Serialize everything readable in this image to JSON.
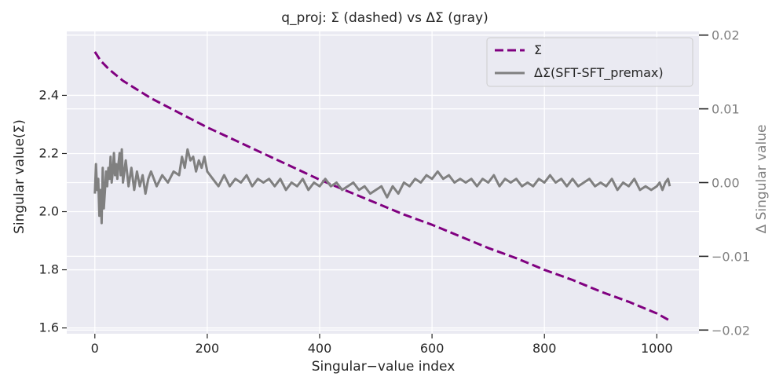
{
  "chart_data": {
    "type": "line",
    "title": "q_proj: Σ (dashed) vs ΔΣ (gray)",
    "xlabel": "Singular−value index",
    "ylabel": "Singular value(Σ)",
    "ylabel_right": "Δ Singular value",
    "xlim": [
      -50,
      1075
    ],
    "ylim": [
      1.58,
      2.62
    ],
    "ylim_right": [
      -0.0205,
      0.0205
    ],
    "x_ticks": [
      0,
      200,
      400,
      600,
      800,
      1000
    ],
    "x_tick_labels": [
      "0",
      "200",
      "400",
      "600",
      "800",
      "1000"
    ],
    "y_ticks": [
      1.6,
      1.8,
      2.0,
      2.2,
      2.4
    ],
    "y_tick_labels": [
      "1.6",
      "1.8",
      "2.0",
      "2.2",
      "2.4"
    ],
    "y_ticks_right": [
      -0.02,
      -0.01,
      0.0,
      0.01,
      0.02
    ],
    "y_tick_labels_right": [
      "−0.02",
      "−0.01",
      "0.00",
      "0.01",
      "0.02"
    ],
    "grid": true,
    "legend_position": "top-right",
    "series": [
      {
        "name": "Σ",
        "axis": "left",
        "style": "dashed",
        "color": "#800080",
        "x": [
          0,
          10,
          25,
          50,
          75,
          100,
          150,
          200,
          250,
          300,
          350,
          400,
          450,
          500,
          550,
          600,
          650,
          700,
          750,
          800,
          850,
          900,
          950,
          1000,
          1023
        ],
        "values": [
          2.55,
          2.52,
          2.49,
          2.45,
          2.42,
          2.39,
          2.34,
          2.29,
          2.245,
          2.2,
          2.155,
          2.11,
          2.07,
          2.03,
          1.99,
          1.955,
          1.915,
          1.875,
          1.84,
          1.8,
          1.765,
          1.725,
          1.69,
          1.65,
          1.625
        ]
      },
      {
        "name": "ΔΣ(SFT-SFT_premax)",
        "axis": "right",
        "style": "solid",
        "color": "#808080",
        "x": [
          0,
          2,
          4,
          6,
          8,
          10,
          12,
          14,
          16,
          18,
          20,
          22,
          24,
          26,
          28,
          30,
          32,
          34,
          36,
          38,
          40,
          42,
          44,
          46,
          48,
          50,
          55,
          60,
          65,
          70,
          75,
          80,
          85,
          90,
          95,
          100,
          110,
          120,
          130,
          140,
          150,
          155,
          160,
          165,
          170,
          175,
          180,
          185,
          190,
          195,
          200,
          210,
          220,
          230,
          240,
          250,
          260,
          270,
          280,
          290,
          300,
          310,
          320,
          330,
          340,
          350,
          360,
          370,
          380,
          390,
          400,
          410,
          420,
          430,
          440,
          450,
          460,
          470,
          480,
          490,
          500,
          510,
          520,
          530,
          540,
          550,
          560,
          570,
          580,
          590,
          600,
          610,
          620,
          630,
          640,
          650,
          660,
          670,
          680,
          690,
          700,
          710,
          720,
          730,
          740,
          750,
          760,
          770,
          780,
          790,
          800,
          810,
          820,
          830,
          840,
          850,
          860,
          870,
          880,
          890,
          900,
          910,
          920,
          930,
          940,
          950,
          960,
          970,
          980,
          990,
          1000,
          1005,
          1010,
          1015,
          1020,
          1023
        ],
        "values": [
          -0.0015,
          0.0025,
          -0.001,
          0.0005,
          -0.0045,
          -0.001,
          -0.0055,
          0.002,
          -0.0035,
          -0.001,
          0.0015,
          -0.0005,
          0.002,
          0.0005,
          0.0035,
          0.0,
          0.0015,
          0.004,
          0.001,
          0.0025,
          0.0005,
          0.0025,
          0.004,
          0.001,
          0.0045,
          0.0,
          0.003,
          -0.0005,
          0.002,
          -0.001,
          0.0015,
          -0.0005,
          0.001,
          -0.0015,
          0.0005,
          0.0015,
          -0.0005,
          0.001,
          0.0,
          0.0015,
          0.001,
          0.0035,
          0.002,
          0.0045,
          0.003,
          0.0035,
          0.0015,
          0.003,
          0.002,
          0.0035,
          0.0015,
          0.0005,
          -0.0005,
          0.001,
          -0.0005,
          0.0005,
          0.0,
          0.001,
          -0.0005,
          0.0005,
          0.0,
          0.0005,
          -0.0005,
          0.0005,
          -0.001,
          0.0,
          -0.0005,
          0.0005,
          -0.001,
          0.0,
          -0.0005,
          0.0005,
          -0.0005,
          0.0,
          -0.001,
          -0.0005,
          0.0,
          -0.001,
          -0.0005,
          -0.0015,
          -0.001,
          -0.0005,
          -0.002,
          -0.0005,
          -0.0015,
          0.0,
          -0.0005,
          0.0005,
          0.0,
          0.001,
          0.0005,
          0.0015,
          0.0005,
          0.001,
          0.0,
          0.0005,
          0.0,
          0.0005,
          -0.0005,
          0.0005,
          0.0,
          0.001,
          -0.0005,
          0.0005,
          0.0,
          0.0005,
          -0.0005,
          0.0,
          -0.0005,
          0.0005,
          0.0,
          0.001,
          0.0,
          0.0005,
          -0.0005,
          0.0005,
          -0.0005,
          0.0,
          0.0005,
          -0.0005,
          0.0,
          -0.0005,
          0.0005,
          -0.001,
          0.0,
          -0.0005,
          0.0005,
          -0.001,
          -0.0005,
          -0.001,
          -0.0005,
          0.0,
          -0.001,
          0.0,
          0.0005,
          -0.0005
        ]
      }
    ]
  },
  "colors": {
    "plot_background": "#eaeaf2",
    "grid": "#ffffff",
    "sigma_line": "#800080",
    "delta_line": "#808080",
    "right_axis_text": "#808080"
  }
}
